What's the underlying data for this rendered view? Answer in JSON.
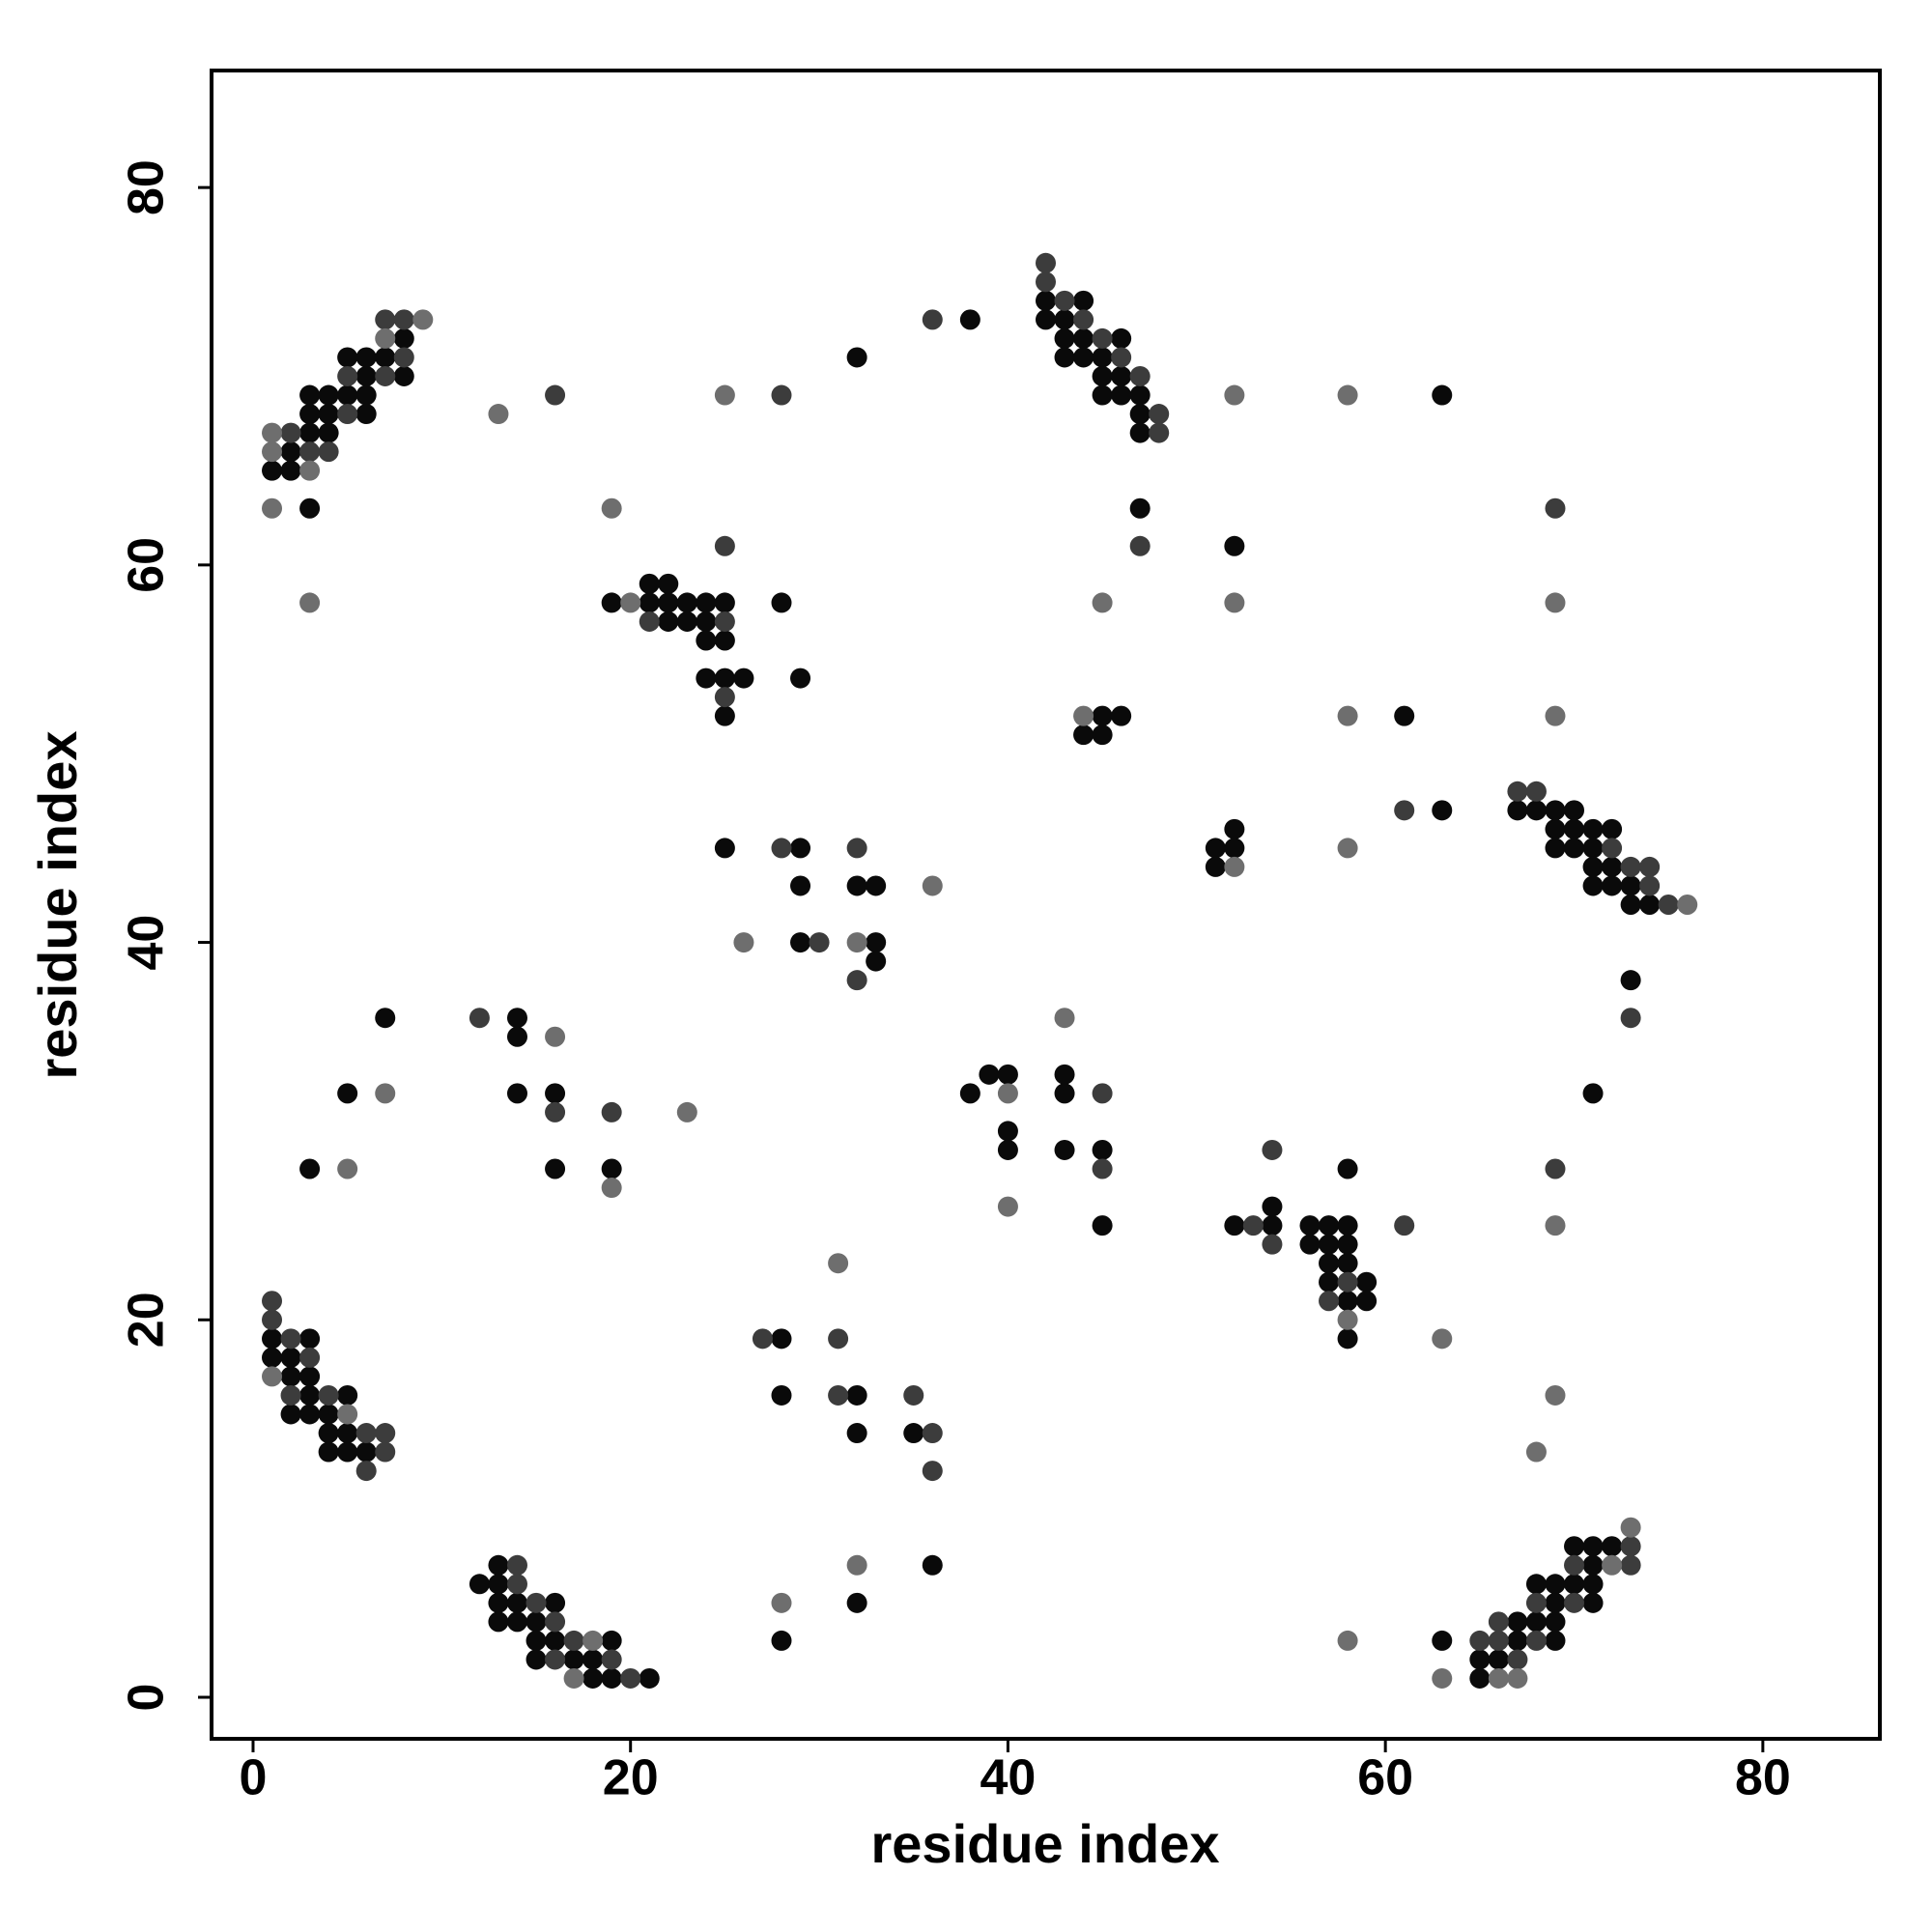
{
  "chart_data": {
    "type": "scatter",
    "xlabel": "residue index",
    "ylabel": "residue index",
    "xlim": [
      -2.2,
      86.2
    ],
    "ylim": [
      -2.2,
      86.2
    ],
    "xticks": [
      0,
      20,
      40,
      60,
      80
    ],
    "yticks": [
      0,
      20,
      40,
      60,
      80
    ],
    "grid": false,
    "series": [
      {
        "color": "#0a0a0a",
        "x": [
          8,
          5,
          6,
          7,
          6,
          8,
          3,
          4,
          5,
          6,
          3,
          4,
          6,
          3,
          4,
          2,
          1,
          2,
          3,
          32,
          38,
          42,
          44,
          42,
          43,
          43,
          44,
          46,
          43,
          44,
          45,
          45,
          46,
          45,
          46,
          47,
          47,
          47,
          47,
          63,
          52,
          61,
          63,
          21,
          22,
          19,
          21,
          22,
          23,
          24,
          25,
          28,
          22,
          23,
          24,
          24,
          25,
          24,
          25,
          26,
          29,
          25,
          45,
          46,
          44,
          45,
          51,
          52,
          52,
          51,
          67,
          68,
          69,
          70,
          69,
          70,
          71,
          72,
          69,
          70,
          71,
          71,
          72,
          71,
          72,
          73,
          73,
          74,
          73,
          71,
          25,
          29,
          29,
          32,
          33,
          29,
          33,
          33,
          7,
          14,
          14,
          5,
          14,
          16,
          3,
          16,
          19,
          38,
          39,
          40,
          43,
          43,
          40,
          40,
          43,
          45,
          45,
          54,
          52,
          54,
          56,
          57,
          58,
          56,
          57,
          58,
          57,
          58,
          57,
          59,
          58,
          59,
          58,
          58,
          1,
          3,
          1,
          2,
          2,
          3,
          3,
          5,
          2,
          3,
          4,
          4,
          5,
          4,
          5,
          6,
          28,
          28,
          32,
          32,
          35,
          36,
          32,
          28,
          13,
          12,
          13,
          13,
          14,
          16,
          13,
          14,
          15,
          15,
          16,
          19,
          15,
          17,
          18,
          18,
          19,
          21,
          70,
          71,
          72,
          71,
          68,
          69,
          70,
          71,
          69,
          71,
          67,
          68,
          69,
          63,
          67,
          69,
          65,
          66,
          65
        ],
        "y": [
          72,
          71,
          71,
          71,
          70,
          70,
          69,
          69,
          69,
          69,
          68,
          68,
          68,
          67,
          67,
          66,
          65,
          65,
          63,
          71,
          73,
          74,
          74,
          73,
          73,
          72,
          72,
          72,
          71,
          71,
          71,
          70,
          70,
          69,
          69,
          69,
          68,
          67,
          63,
          69,
          61,
          52,
          47,
          59,
          59,
          58,
          58,
          58,
          58,
          58,
          58,
          58,
          57,
          57,
          57,
          56,
          56,
          54,
          54,
          54,
          54,
          52,
          52,
          52,
          51,
          51,
          45,
          45,
          46,
          44,
          47,
          47,
          47,
          47,
          46,
          46,
          46,
          46,
          45,
          45,
          45,
          44,
          44,
          43,
          43,
          43,
          42,
          42,
          38,
          32,
          45,
          45,
          43,
          43,
          43,
          40,
          40,
          39,
          36,
          36,
          35,
          32,
          32,
          32,
          28,
          28,
          28,
          32,
          33,
          33,
          33,
          32,
          30,
          29,
          29,
          29,
          25,
          26,
          25,
          25,
          25,
          25,
          25,
          24,
          24,
          24,
          23,
          23,
          22,
          22,
          21,
          21,
          19,
          28,
          19,
          19,
          18,
          18,
          17,
          17,
          16,
          16,
          15,
          15,
          15,
          14,
          14,
          13,
          13,
          13,
          19,
          16,
          16,
          14,
          14,
          7,
          5,
          3,
          7,
          6,
          6,
          5,
          5,
          5,
          4,
          4,
          4,
          3,
          3,
          3,
          2,
          2,
          2,
          1,
          1,
          1,
          8,
          8,
          8,
          7,
          6,
          6,
          6,
          6,
          5,
          5,
          4,
          4,
          4,
          3,
          3,
          3,
          2,
          2,
          1
        ]
      },
      {
        "color": "#3c3c3c",
        "x": [
          7,
          8,
          8,
          5,
          7,
          5,
          2,
          3,
          4,
          16,
          28,
          36,
          25,
          42,
          42,
          43,
          44,
          45,
          46,
          47,
          48,
          48,
          47,
          69,
          61,
          21,
          25,
          25,
          67,
          68,
          72,
          73,
          74,
          74,
          75,
          73,
          28,
          32,
          30,
          32,
          12,
          16,
          19,
          45,
          45,
          54,
          53,
          54,
          58,
          57,
          61,
          69,
          1,
          1,
          2,
          3,
          2,
          4,
          6,
          7,
          7,
          6,
          27,
          31,
          31,
          35,
          36,
          36,
          14,
          14,
          15,
          16,
          17,
          16,
          19,
          20,
          73,
          70,
          73,
          68,
          70,
          66,
          65,
          66,
          68,
          67
        ],
        "y": [
          73,
          73,
          71,
          70,
          70,
          68,
          67,
          66,
          66,
          69,
          69,
          73,
          61,
          76,
          75,
          74,
          73,
          72,
          71,
          70,
          68,
          67,
          61,
          63,
          47,
          57,
          57,
          53,
          48,
          48,
          45,
          44,
          44,
          43,
          42,
          36,
          45,
          45,
          40,
          38,
          36,
          31,
          31,
          32,
          28,
          29,
          25,
          24,
          22,
          21,
          25,
          28,
          21,
          20,
          19,
          18,
          16,
          16,
          14,
          14,
          13,
          12,
          19,
          19,
          16,
          16,
          14,
          12,
          7,
          6,
          5,
          4,
          3,
          2,
          2,
          1,
          8,
          7,
          7,
          5,
          5,
          4,
          3,
          3,
          3,
          2
        ]
      },
      {
        "color": "#6e6e6e",
        "x": [
          9,
          7,
          1,
          1,
          3,
          1,
          3,
          13,
          19,
          25,
          52,
          58,
          52,
          45,
          69,
          69,
          58,
          58,
          20,
          44,
          52,
          76,
          36,
          26,
          32,
          16,
          7,
          23,
          5,
          19,
          43,
          40,
          40,
          58,
          69,
          63,
          69,
          68,
          1,
          5,
          31,
          32,
          28,
          58,
          18,
          17,
          73,
          72,
          63,
          66,
          67
        ],
        "y": [
          73,
          72,
          67,
          66,
          65,
          63,
          58,
          68,
          63,
          69,
          69,
          69,
          58,
          58,
          58,
          52,
          52,
          45,
          58,
          52,
          44,
          42,
          43,
          40,
          40,
          35,
          32,
          31,
          28,
          27,
          36,
          32,
          26,
          20,
          25,
          19,
          16,
          13,
          17,
          15,
          23,
          7,
          5,
          3,
          3,
          1,
          9,
          7,
          1,
          1,
          1
        ]
      }
    ]
  }
}
